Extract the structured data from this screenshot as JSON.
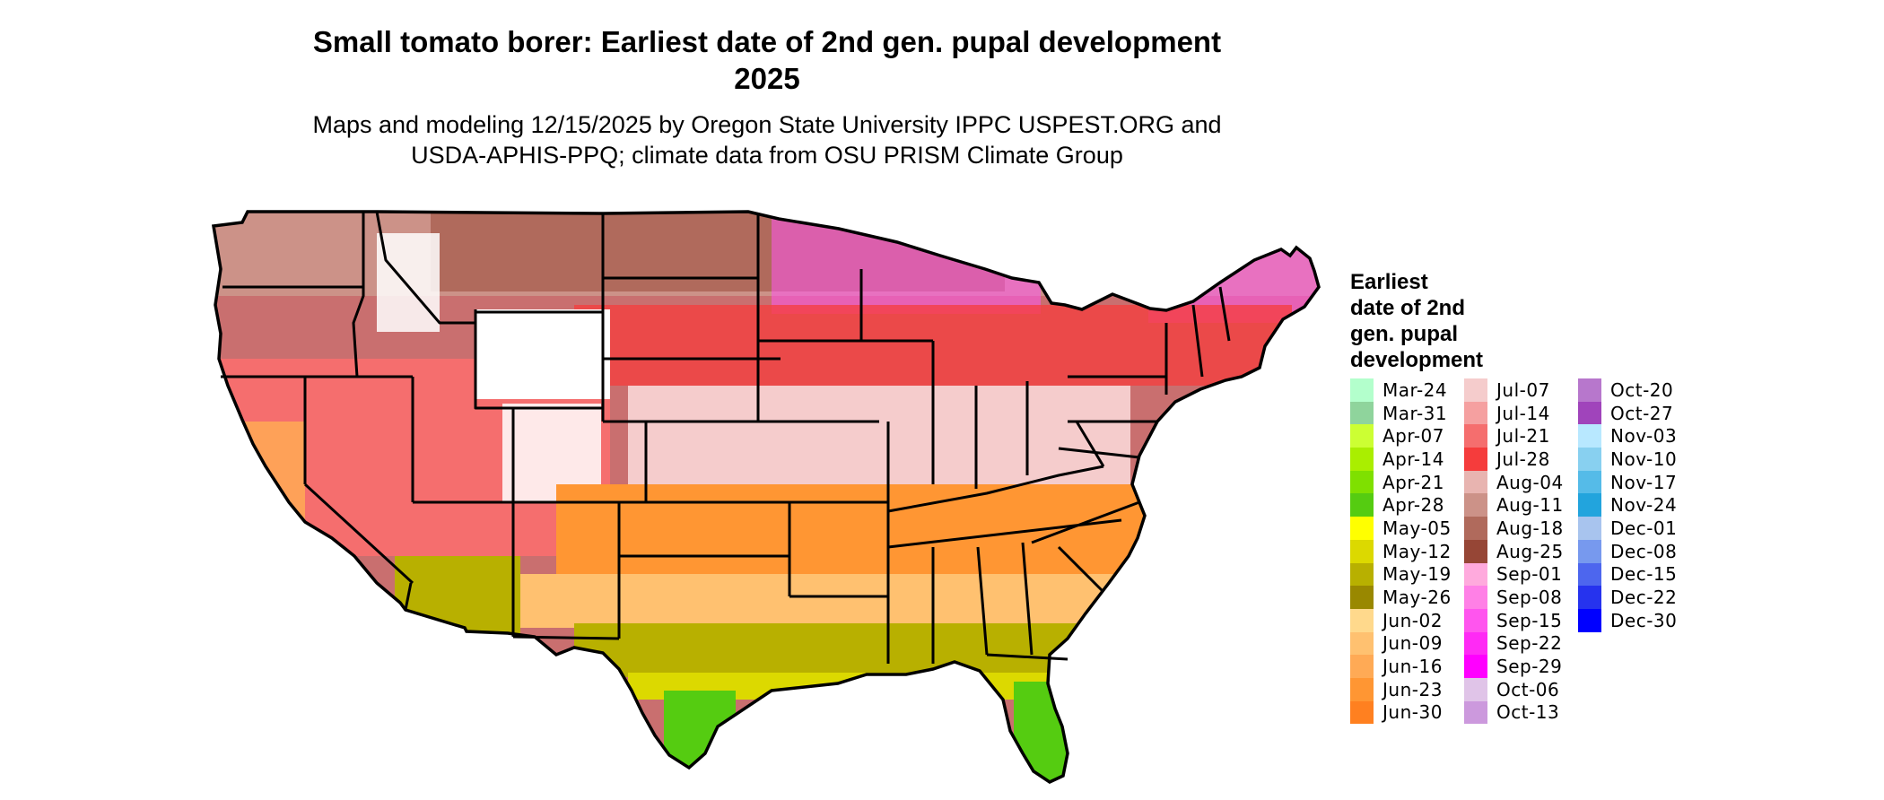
{
  "map": {
    "title_line1": "Small tomato borer: Earliest date of 2nd gen. pupal development",
    "title_line2": "2025",
    "subtitle_line1": "Maps and modeling 12/15/2025 by Oregon State University IPPC USPEST.ORG and",
    "subtitle_line2": "USDA-APHIS-PPQ; climate data from OSU PRISM Climate Group",
    "region": "conterminous-united-states"
  },
  "legend": {
    "title_lines": [
      "Earliest",
      "date of 2nd",
      "gen. pupal",
      "development"
    ],
    "columns": [
      [
        {
          "label": "Mar-24",
          "color": "#b3ffcc"
        },
        {
          "label": "Mar-31",
          "color": "#8fd49c"
        },
        {
          "label": "Apr-07",
          "color": "#ccff33"
        },
        {
          "label": "Apr-14",
          "color": "#aaee00"
        },
        {
          "label": "Apr-21",
          "color": "#7fe000"
        },
        {
          "label": "Apr-28",
          "color": "#55cc11"
        },
        {
          "label": "May-05",
          "color": "#ffff00"
        },
        {
          "label": "May-12",
          "color": "#dcd900"
        },
        {
          "label": "May-19",
          "color": "#b8b000"
        },
        {
          "label": "May-26",
          "color": "#998800"
        },
        {
          "label": "Jun-02",
          "color": "#ffd98c"
        },
        {
          "label": "Jun-09",
          "color": "#ffc170"
        },
        {
          "label": "Jun-16",
          "color": "#ffaa55"
        },
        {
          "label": "Jun-23",
          "color": "#ff9633"
        },
        {
          "label": "Jun-30",
          "color": "#ff8020"
        }
      ],
      [
        {
          "label": "Jul-07",
          "color": "#f5cccc"
        },
        {
          "label": "Jul-14",
          "color": "#f5a0a0"
        },
        {
          "label": "Jul-21",
          "color": "#f56e6e"
        },
        {
          "label": "Jul-28",
          "color": "#f53c3c"
        },
        {
          "label": "Aug-04",
          "color": "#e8b4b0"
        },
        {
          "label": "Aug-11",
          "color": "#cc9288"
        },
        {
          "label": "Aug-18",
          "color": "#b06a5c"
        },
        {
          "label": "Aug-25",
          "color": "#964636"
        },
        {
          "label": "Sep-01",
          "color": "#ffaadd"
        },
        {
          "label": "Sep-08",
          "color": "#ff80e6"
        },
        {
          "label": "Sep-15",
          "color": "#ff55ee"
        },
        {
          "label": "Sep-22",
          "color": "#ff2af5"
        },
        {
          "label": "Sep-29",
          "color": "#ff00ff"
        },
        {
          "label": "Oct-06",
          "color": "#e0c4e8"
        },
        {
          "label": "Oct-13",
          "color": "#cc99dd"
        }
      ],
      [
        {
          "label": "Oct-20",
          "color": "#b777cc"
        },
        {
          "label": "Oct-27",
          "color": "#a044bb"
        },
        {
          "label": "Nov-03",
          "color": "#b8e8ff"
        },
        {
          "label": "Nov-10",
          "color": "#88d0f0"
        },
        {
          "label": "Nov-17",
          "color": "#55bbe8"
        },
        {
          "label": "Nov-24",
          "color": "#22a4dd"
        },
        {
          "label": "Dec-01",
          "color": "#a8c4ee"
        },
        {
          "label": "Dec-08",
          "color": "#7799ee"
        },
        {
          "label": "Dec-15",
          "color": "#4d66ee"
        },
        {
          "label": "Dec-22",
          "color": "#2633ee"
        },
        {
          "label": "Dec-30",
          "color": "#0000ff"
        }
      ]
    ]
  }
}
